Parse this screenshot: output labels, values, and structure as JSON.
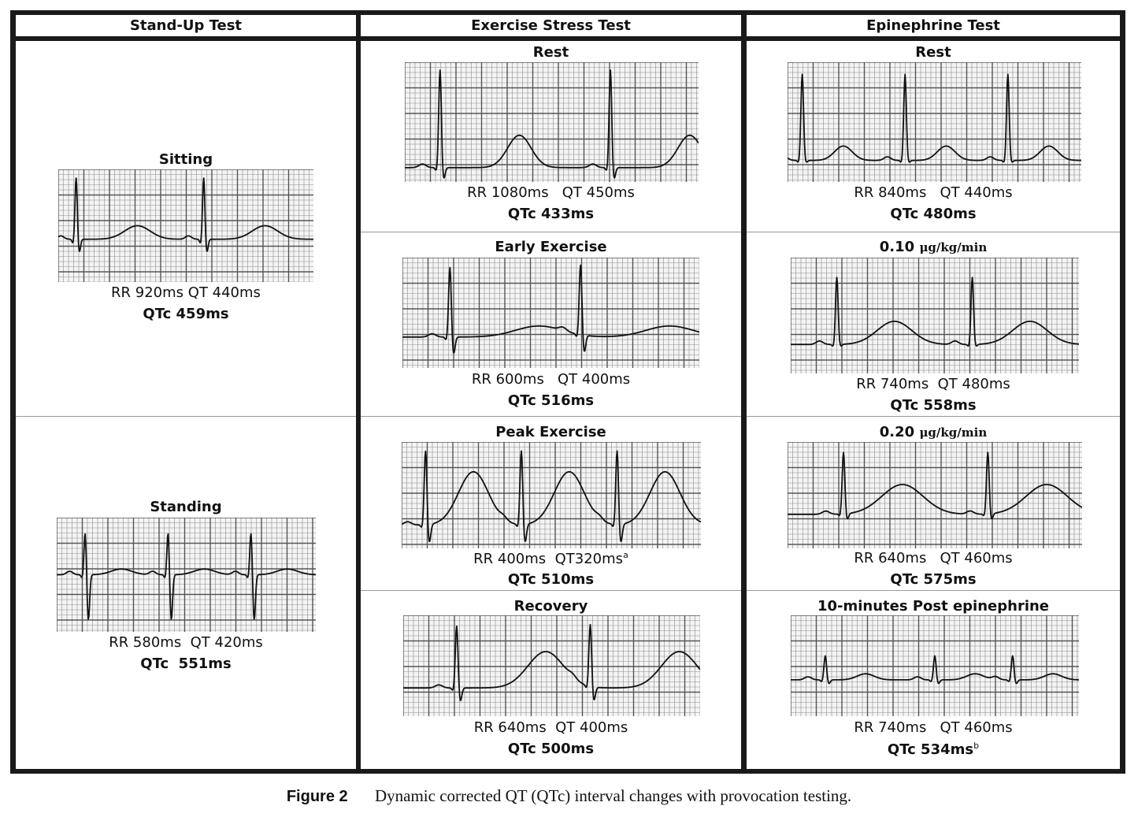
{
  "columns": [
    {
      "header": "Stand-Up Test"
    },
    {
      "header": "Exercise Stress Test"
    },
    {
      "header": "Epinephrine Test"
    }
  ],
  "standup": {
    "sitting": {
      "title": "Sitting",
      "measure": "RR 920ms QT 440ms",
      "qtc": "QTc 459ms"
    },
    "standing": {
      "title": "Standing",
      "measure": "RR 580ms  QT 420ms",
      "qtc": "QTc  551ms"
    }
  },
  "exercise": {
    "rest": {
      "title": "Rest",
      "measure": "RR 1080ms   QT 450ms",
      "qtc": "QTc 433ms"
    },
    "early": {
      "title": "Early Exercise",
      "measure": "RR 600ms   QT 400ms",
      "qtc": "QTc 516ms"
    },
    "peak": {
      "title": "Peak Exercise",
      "measure": "RR 400ms  QT320ms",
      "measure_sup": "a",
      "qtc": "QTc 510ms"
    },
    "recovery": {
      "title": "Recovery",
      "measure": "RR 640ms  QT 400ms",
      "qtc": "QTc 500ms"
    }
  },
  "epinephrine": {
    "rest": {
      "title": "Rest",
      "measure": "RR 840ms   QT 440ms",
      "qtc": "QTc 480ms"
    },
    "dose1": {
      "value": "0.10",
      "unit": "μg/kg/min",
      "measure": "RR 740ms  QT 480ms",
      "qtc": "QTc 558ms"
    },
    "dose2": {
      "value": "0.20",
      "unit": "μg/kg/min",
      "measure": "RR 640ms   QT 460ms",
      "qtc": "QTc 575ms"
    },
    "post": {
      "title": "10-minutes Post epinephrine",
      "measure": "RR 740ms   QT 460ms",
      "qtc": "QTc 534ms",
      "qtc_sup": "b"
    }
  },
  "caption": {
    "label": "Figure 2",
    "text": "Dynamic corrected QT (QTc) interval changes with provocation testing."
  },
  "colors": {
    "frame": "#1a1a1a",
    "grid": "#3a3a3a",
    "trace": "#111111"
  }
}
